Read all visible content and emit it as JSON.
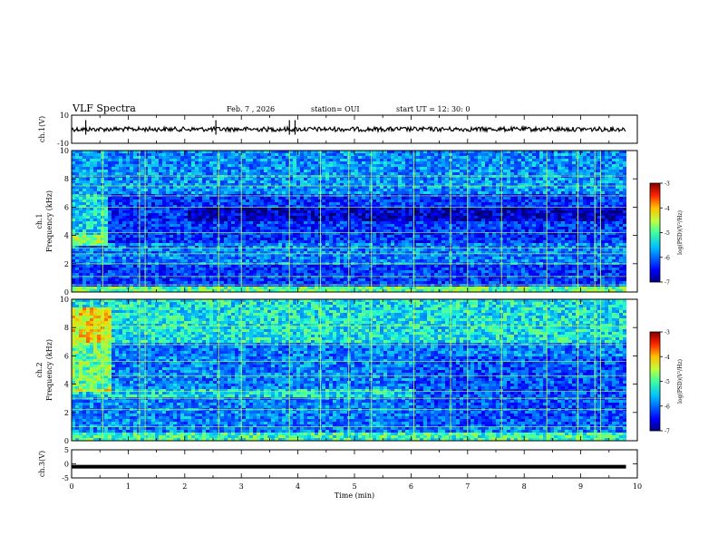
{
  "header": {
    "title": "VLF Spectra",
    "date": "Feb. 7 , 2026",
    "station": "station= OUI",
    "start": "start  UT =  12: 30: 0"
  },
  "chart_data": [
    {
      "type": "line",
      "name": "ch1-voltage",
      "ylabel": "ch.1(V)",
      "ylim": [
        -10,
        10
      ],
      "ytick_labels": [
        "10",
        "-10"
      ],
      "y_level": 0,
      "spikes_x_min": [
        0.25,
        2.55,
        3.85,
        3.95
      ]
    },
    {
      "type": "heatmap",
      "name": "ch1-spectrogram",
      "ylabel_line1": "ch.1",
      "ylabel_line2": "Frequency (kHz)",
      "ylim": [
        0,
        10
      ],
      "ytick_labels": [
        "0",
        "2",
        "4",
        "6",
        "8",
        "10"
      ],
      "xlim": [
        0,
        9.8
      ],
      "colorbar": {
        "label": "log(PSD)(V²/Hz)",
        "ticks": [
          "-3",
          "-4",
          "-5",
          "-6",
          "-7"
        ],
        "range": [
          -7,
          -3
        ]
      }
    },
    {
      "type": "heatmap",
      "name": "ch2-spectrogram",
      "ylabel_line1": "ch.2",
      "ylabel_line2": "Frequency (kHz)",
      "ylim": [
        0,
        10
      ],
      "ytick_labels": [
        "0",
        "2",
        "4",
        "6",
        "8",
        "10"
      ],
      "xlim": [
        0,
        9.8
      ],
      "colorbar": {
        "label": "log(PSD)(V²/Hz)",
        "ticks": [
          "-3",
          "-4",
          "-5",
          "-6",
          "-7"
        ],
        "range": [
          -7,
          -3
        ]
      }
    },
    {
      "type": "line",
      "name": "ch3-voltage",
      "ylabel": "ch.3(V)",
      "ylim": [
        -5,
        5
      ],
      "ytick_labels": [
        "5",
        "0",
        "-5"
      ],
      "y_level": -1
    }
  ],
  "xaxis": {
    "label": "Time (min)",
    "xlim": [
      0,
      10
    ],
    "ticks": [
      "0",
      "1",
      "2",
      "3",
      "4",
      "5",
      "6",
      "7",
      "8",
      "9",
      "10"
    ]
  },
  "colors": {
    "colormap": [
      "#00007f",
      "#0000ff",
      "#007fff",
      "#00ffff",
      "#7fff7f",
      "#ffff00",
      "#ff7f00",
      "#ff0000",
      "#7f0000"
    ]
  }
}
